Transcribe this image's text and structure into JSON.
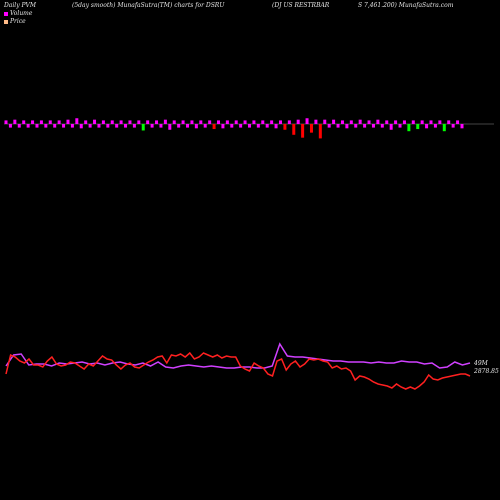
{
  "header": {
    "left": "Daily PVM",
    "mid": "(5day smooth) MunafaSutra(TM) charts for DSRU",
    "right1": "(DJ US RESTRBAR",
    "right2": "S 7,461.200) MunafaSutra.com"
  },
  "legend": {
    "volume_label": "Volume",
    "price_label": "Price"
  },
  "right_labels": {
    "volume_value": "49M",
    "price_value": "2878.85"
  },
  "colors": {
    "background": "#000000",
    "up_bar": "#ff00ff",
    "down_bar": "#ff0000",
    "other_bar": "#00ff00",
    "volume_line": "#d040ff",
    "price_line": "#ff2020",
    "baseline": "#888888"
  },
  "chart_data": {
    "type": "line",
    "pvm_bars": [
      {
        "v": 1.0,
        "c": "magenta"
      },
      {
        "v": -1.0,
        "c": "magenta"
      },
      {
        "v": 1.2,
        "c": "magenta"
      },
      {
        "v": -1.0,
        "c": "magenta"
      },
      {
        "v": 1.0,
        "c": "magenta"
      },
      {
        "v": -1.0,
        "c": "magenta"
      },
      {
        "v": 1.0,
        "c": "magenta"
      },
      {
        "v": -1.0,
        "c": "magenta"
      },
      {
        "v": 1.0,
        "c": "magenta"
      },
      {
        "v": -1.0,
        "c": "magenta"
      },
      {
        "v": 1.0,
        "c": "magenta"
      },
      {
        "v": -1.0,
        "c": "magenta"
      },
      {
        "v": 1.0,
        "c": "magenta"
      },
      {
        "v": -1.0,
        "c": "magenta"
      },
      {
        "v": 1.2,
        "c": "magenta"
      },
      {
        "v": -1.0,
        "c": "magenta"
      },
      {
        "v": 1.6,
        "c": "magenta"
      },
      {
        "v": -1.2,
        "c": "magenta"
      },
      {
        "v": 1.0,
        "c": "magenta"
      },
      {
        "v": -1.0,
        "c": "magenta"
      },
      {
        "v": 1.2,
        "c": "magenta"
      },
      {
        "v": -1.0,
        "c": "magenta"
      },
      {
        "v": 1.0,
        "c": "magenta"
      },
      {
        "v": -1.0,
        "c": "magenta"
      },
      {
        "v": 1.0,
        "c": "magenta"
      },
      {
        "v": -1.0,
        "c": "magenta"
      },
      {
        "v": 1.0,
        "c": "magenta"
      },
      {
        "v": -1.0,
        "c": "magenta"
      },
      {
        "v": 1.0,
        "c": "magenta"
      },
      {
        "v": -1.0,
        "c": "magenta"
      },
      {
        "v": 1.0,
        "c": "magenta"
      },
      {
        "v": -1.8,
        "c": "green"
      },
      {
        "v": 1.0,
        "c": "magenta"
      },
      {
        "v": -1.0,
        "c": "magenta"
      },
      {
        "v": 1.0,
        "c": "magenta"
      },
      {
        "v": -1.0,
        "c": "magenta"
      },
      {
        "v": 1.2,
        "c": "magenta"
      },
      {
        "v": -1.6,
        "c": "magenta"
      },
      {
        "v": 1.0,
        "c": "magenta"
      },
      {
        "v": -1.0,
        "c": "magenta"
      },
      {
        "v": 1.0,
        "c": "magenta"
      },
      {
        "v": -1.0,
        "c": "magenta"
      },
      {
        "v": 1.0,
        "c": "magenta"
      },
      {
        "v": -1.2,
        "c": "magenta"
      },
      {
        "v": 1.0,
        "c": "magenta"
      },
      {
        "v": -1.0,
        "c": "magenta"
      },
      {
        "v": 1.0,
        "c": "magenta"
      },
      {
        "v": -1.4,
        "c": "red"
      },
      {
        "v": 1.0,
        "c": "magenta"
      },
      {
        "v": -1.2,
        "c": "magenta"
      },
      {
        "v": 1.0,
        "c": "magenta"
      },
      {
        "v": -1.0,
        "c": "magenta"
      },
      {
        "v": 1.0,
        "c": "magenta"
      },
      {
        "v": -1.0,
        "c": "magenta"
      },
      {
        "v": 1.0,
        "c": "magenta"
      },
      {
        "v": -1.0,
        "c": "magenta"
      },
      {
        "v": 1.0,
        "c": "magenta"
      },
      {
        "v": -1.0,
        "c": "magenta"
      },
      {
        "v": 1.0,
        "c": "magenta"
      },
      {
        "v": -1.0,
        "c": "magenta"
      },
      {
        "v": 1.0,
        "c": "magenta"
      },
      {
        "v": -1.2,
        "c": "magenta"
      },
      {
        "v": 1.0,
        "c": "magenta"
      },
      {
        "v": -1.6,
        "c": "red"
      },
      {
        "v": 1.0,
        "c": "magenta"
      },
      {
        "v": -3.0,
        "c": "red"
      },
      {
        "v": 1.2,
        "c": "magenta"
      },
      {
        "v": -3.8,
        "c": "red"
      },
      {
        "v": 1.6,
        "c": "magenta"
      },
      {
        "v": -2.4,
        "c": "red"
      },
      {
        "v": 1.2,
        "c": "magenta"
      },
      {
        "v": -4.0,
        "c": "red"
      },
      {
        "v": 1.2,
        "c": "magenta"
      },
      {
        "v": -1.0,
        "c": "magenta"
      },
      {
        "v": 1.2,
        "c": "magenta"
      },
      {
        "v": -1.0,
        "c": "magenta"
      },
      {
        "v": 1.0,
        "c": "magenta"
      },
      {
        "v": -1.2,
        "c": "magenta"
      },
      {
        "v": 1.0,
        "c": "magenta"
      },
      {
        "v": -1.0,
        "c": "magenta"
      },
      {
        "v": 1.2,
        "c": "magenta"
      },
      {
        "v": -1.0,
        "c": "magenta"
      },
      {
        "v": 1.0,
        "c": "magenta"
      },
      {
        "v": -1.0,
        "c": "magenta"
      },
      {
        "v": 1.2,
        "c": "magenta"
      },
      {
        "v": -1.0,
        "c": "magenta"
      },
      {
        "v": 1.0,
        "c": "magenta"
      },
      {
        "v": -1.6,
        "c": "magenta"
      },
      {
        "v": 1.0,
        "c": "magenta"
      },
      {
        "v": -1.0,
        "c": "magenta"
      },
      {
        "v": 1.0,
        "c": "magenta"
      },
      {
        "v": -2.0,
        "c": "green"
      },
      {
        "v": 1.0,
        "c": "magenta"
      },
      {
        "v": -1.4,
        "c": "green"
      },
      {
        "v": 1.0,
        "c": "magenta"
      },
      {
        "v": -1.2,
        "c": "magenta"
      },
      {
        "v": 1.0,
        "c": "magenta"
      },
      {
        "v": -1.0,
        "c": "magenta"
      },
      {
        "v": 1.0,
        "c": "magenta"
      },
      {
        "v": -2.0,
        "c": "green"
      },
      {
        "v": 1.0,
        "c": "magenta"
      },
      {
        "v": -1.0,
        "c": "magenta"
      },
      {
        "v": 1.0,
        "c": "magenta"
      },
      {
        "v": -1.2,
        "c": "magenta"
      }
    ],
    "volume_series": [
      366,
      355,
      354,
      365,
      364,
      364,
      366,
      363,
      364,
      363,
      362,
      364,
      363,
      365,
      363,
      362,
      364,
      365,
      363,
      366,
      362,
      367,
      368,
      366,
      365,
      366,
      367,
      366,
      367,
      368,
      368,
      367,
      367,
      368,
      368,
      366,
      344,
      356,
      357,
      357,
      358,
      359,
      360,
      361,
      361,
      362,
      362,
      362,
      363,
      362,
      363,
      363,
      361,
      362,
      362,
      364,
      363,
      368,
      367,
      362,
      365,
      363
    ],
    "price_series": [
      374,
      355,
      357,
      361,
      363,
      359,
      365,
      365,
      367,
      361,
      357,
      364,
      366,
      365,
      362,
      363,
      366,
      369,
      364,
      366,
      361,
      356,
      359,
      360,
      365,
      369,
      365,
      363,
      367,
      368,
      365,
      362,
      360,
      357,
      356,
      363,
      355,
      356,
      354,
      357,
      353,
      359,
      357,
      353,
      355,
      357,
      355,
      358,
      356,
      357,
      357,
      366,
      369,
      371,
      363,
      366,
      368,
      374,
      376,
      361,
      359,
      370,
      364,
      361,
      367,
      364,
      359,
      360,
      359,
      361,
      362,
      368,
      366,
      369,
      368,
      371,
      380,
      376,
      377,
      379,
      382,
      384,
      385,
      386,
      388,
      384,
      387,
      389,
      387,
      389,
      386,
      382,
      375,
      379,
      380,
      378,
      377,
      376,
      375,
      374,
      374,
      376
    ]
  }
}
